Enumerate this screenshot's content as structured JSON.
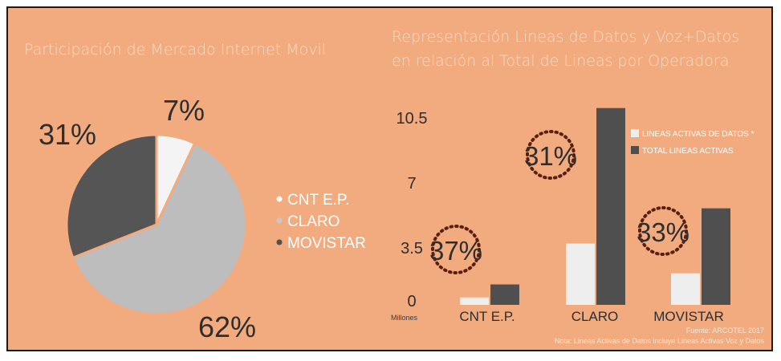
{
  "background_color": "#f2ab7f",
  "charts": [
    {
      "title": "Participación de Mercado Internet Movil",
      "legend": [
        {
          "label": "CNT E.P.",
          "marker_color": "#ffffff"
        },
        {
          "label": "CLARO",
          "marker_color": "#c8c8c8"
        },
        {
          "label": "MOVISTAR",
          "marker_color": "#505050"
        }
      ]
    },
    {
      "title_line1": "Representación Lineas de Datos y Voz+Datos",
      "title_line2": "en relación al Total de Lineas por Operadora",
      "unit_label": "Millones",
      "legend": [
        {
          "label": "LINEAS ACTIVAS DE DATOS *",
          "color": "#eeeeee"
        },
        {
          "label": "TOTAL LINEAS ACTIVAS",
          "color": "#4f4f4f"
        }
      ],
      "ratio_badges": [
        "37%",
        "31%",
        "33%"
      ]
    }
  ],
  "chart_data": [
    {
      "type": "pie",
      "title": "Participación de Mercado Internet Movil",
      "labels": [
        "CNT E.P.",
        "CLARO",
        "MOVISTAR"
      ],
      "values": [
        7,
        62,
        31
      ],
      "value_labels": [
        "7%",
        "62%",
        "31%"
      ],
      "colors": [
        "#f4f4f4",
        "#bdbdbd",
        "#555555"
      ]
    },
    {
      "type": "bar",
      "title": "Representación Lineas de Datos y Voz+Datos en relación al Total de Lineas por Operadora",
      "categories": [
        "CNT E.P.",
        "CLARO",
        "MOVISTAR"
      ],
      "series": [
        {
          "name": "LINEAS ACTIVAS DE DATOS *",
          "values": [
            0.4,
            3.3,
            1.7
          ],
          "color": "#eeeeee"
        },
        {
          "name": "TOTAL LINEAS ACTIVAS",
          "values": [
            1.1,
            10.6,
            5.2
          ],
          "color": "#4f4f4f"
        }
      ],
      "yticks": [
        "0",
        "3.5",
        "7",
        "10.5"
      ],
      "ylim": [
        0,
        10.5
      ],
      "ylabel": "Millones",
      "annotations": [
        "37%",
        "31%",
        "33%"
      ],
      "grid": false,
      "legend_position": "top-right"
    }
  ],
  "footer": {
    "source": "Fuente: ARCOTEL 2017",
    "note": "Nota: Lineas Activas de Datos incluye Lineas Activas Voz y Datos"
  }
}
